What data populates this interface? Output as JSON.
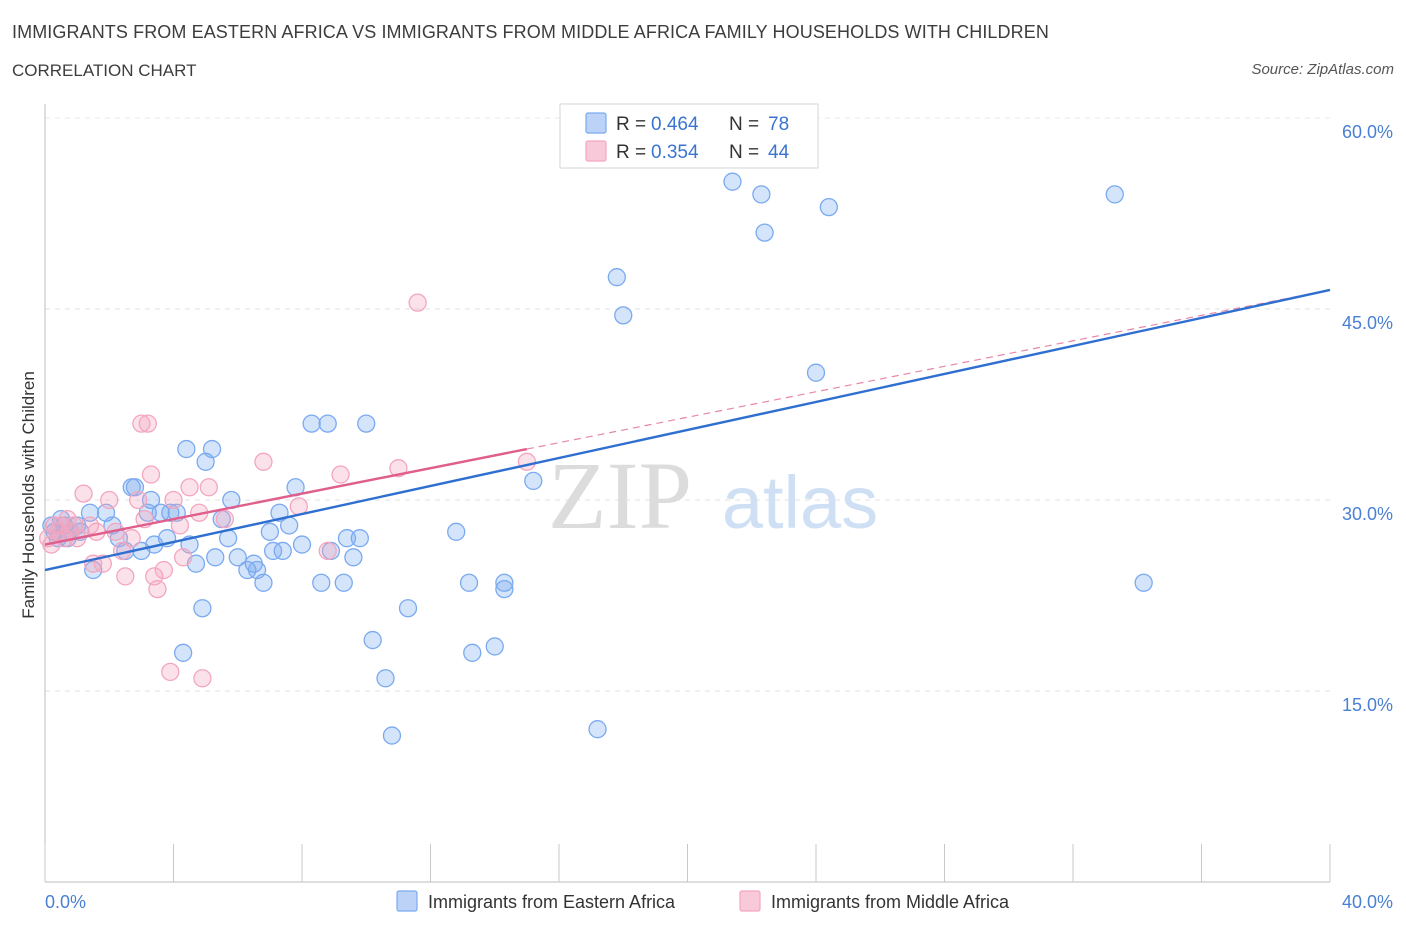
{
  "chart_data": {
    "type": "scatter",
    "title": "IMMIGRANTS FROM EASTERN AFRICA VS IMMIGRANTS FROM MIDDLE AFRICA FAMILY HOUSEHOLDS WITH CHILDREN",
    "subtitle": "CORRELATION CHART",
    "source": "Source: ZipAtlas.com",
    "ylabel": "Family Households with Children",
    "xlim": [
      0,
      40
    ],
    "ylim": [
      0,
      60
    ],
    "x_tick_labels": [
      "0.0%",
      "40.0%"
    ],
    "y_ticks": [
      15,
      30,
      45,
      60
    ],
    "y_tick_labels": [
      "15.0%",
      "30.0%",
      "45.0%",
      "60.0%"
    ],
    "watermark": "ZIPatlas",
    "legend": [
      {
        "r_label": "R =",
        "r_value": "0.464",
        "n_label": "N =",
        "n_value": "78"
      },
      {
        "r_label": "R =",
        "r_value": "0.354",
        "n_label": "N =",
        "n_value": "44"
      }
    ],
    "series": [
      {
        "name": "Immigrants from Eastern Africa",
        "color": "#7aaaf0",
        "line_color": "#2f6fd0",
        "trend": {
          "x": [
            0,
            40
          ],
          "y": [
            24.5,
            46.5
          ]
        },
        "points": [
          [
            0.2,
            28
          ],
          [
            0.3,
            27.5
          ],
          [
            0.4,
            27
          ],
          [
            0.5,
            28.5
          ],
          [
            0.6,
            28
          ],
          [
            0.7,
            27
          ],
          [
            0.8,
            27.5
          ],
          [
            1.0,
            28
          ],
          [
            1.1,
            27.5
          ],
          [
            1.4,
            29
          ],
          [
            1.5,
            24.5
          ],
          [
            1.9,
            29
          ],
          [
            2.1,
            28
          ],
          [
            2.3,
            27
          ],
          [
            2.5,
            26
          ],
          [
            2.7,
            31
          ],
          [
            2.8,
            31
          ],
          [
            3.0,
            26
          ],
          [
            3.2,
            29
          ],
          [
            3.3,
            30
          ],
          [
            3.4,
            26.5
          ],
          [
            3.6,
            29
          ],
          [
            3.8,
            27
          ],
          [
            3.9,
            29
          ],
          [
            4.1,
            29
          ],
          [
            4.3,
            18
          ],
          [
            4.4,
            34
          ],
          [
            4.5,
            26.5
          ],
          [
            4.7,
            25
          ],
          [
            4.9,
            21.5
          ],
          [
            5.0,
            33
          ],
          [
            5.2,
            34
          ],
          [
            5.3,
            25.5
          ],
          [
            5.5,
            28.5
          ],
          [
            5.7,
            27
          ],
          [
            5.8,
            30
          ],
          [
            6.0,
            25.5
          ],
          [
            6.3,
            24.5
          ],
          [
            6.5,
            25
          ],
          [
            6.6,
            24.5
          ],
          [
            6.8,
            23.5
          ],
          [
            7.0,
            27.5
          ],
          [
            7.1,
            26
          ],
          [
            7.3,
            29
          ],
          [
            7.4,
            26
          ],
          [
            7.6,
            28
          ],
          [
            7.8,
            31
          ],
          [
            8.0,
            26.5
          ],
          [
            8.3,
            36
          ],
          [
            8.6,
            23.5
          ],
          [
            8.8,
            36
          ],
          [
            8.9,
            26
          ],
          [
            9.3,
            23.5
          ],
          [
            9.4,
            27
          ],
          [
            9.6,
            25.5
          ],
          [
            9.8,
            27
          ],
          [
            10.0,
            36
          ],
          [
            10.2,
            19
          ],
          [
            10.6,
            16
          ],
          [
            10.8,
            11.5
          ],
          [
            11.3,
            21.5
          ],
          [
            12.8,
            27.5
          ],
          [
            13.2,
            23.5
          ],
          [
            13.3,
            18
          ],
          [
            14.0,
            18.5
          ],
          [
            14.3,
            23.5
          ],
          [
            14.3,
            23
          ],
          [
            15.2,
            31.5
          ],
          [
            17.2,
            12
          ],
          [
            17.8,
            47.5
          ],
          [
            18.0,
            44.5
          ],
          [
            21.4,
            55
          ],
          [
            22.3,
            54
          ],
          [
            22.4,
            51
          ],
          [
            24.0,
            40
          ],
          [
            24.4,
            53
          ],
          [
            33.3,
            54
          ],
          [
            34.2,
            23.5
          ]
        ]
      },
      {
        "name": "Immigrants from Middle Africa",
        "color": "#f4a6bf",
        "line_color": "#e05e8c",
        "trend": {
          "x": [
            0,
            15
          ],
          "y": [
            26.5,
            34
          ]
        },
        "trend_dashed": {
          "x": [
            15,
            40
          ],
          "y": [
            34,
            46.5
          ]
        },
        "points": [
          [
            0.1,
            27
          ],
          [
            0.2,
            26.5
          ],
          [
            0.3,
            28
          ],
          [
            0.4,
            27.5
          ],
          [
            0.5,
            28
          ],
          [
            0.6,
            27
          ],
          [
            0.7,
            28.5
          ],
          [
            0.8,
            27.5
          ],
          [
            0.9,
            28
          ],
          [
            1.0,
            27
          ],
          [
            1.2,
            30.5
          ],
          [
            1.4,
            28
          ],
          [
            1.5,
            25
          ],
          [
            1.6,
            27.5
          ],
          [
            1.8,
            25
          ],
          [
            2.0,
            30
          ],
          [
            2.2,
            27.5
          ],
          [
            2.4,
            26
          ],
          [
            2.5,
            24
          ],
          [
            2.7,
            27
          ],
          [
            2.9,
            30
          ],
          [
            3.0,
            36
          ],
          [
            3.1,
            28.5
          ],
          [
            3.2,
            36
          ],
          [
            3.3,
            32
          ],
          [
            3.4,
            24
          ],
          [
            3.5,
            23
          ],
          [
            3.7,
            24.5
          ],
          [
            3.9,
            16.5
          ],
          [
            4.0,
            30
          ],
          [
            4.2,
            28
          ],
          [
            4.3,
            25.5
          ],
          [
            4.5,
            31
          ],
          [
            4.8,
            29
          ],
          [
            4.9,
            16
          ],
          [
            5.1,
            31
          ],
          [
            5.6,
            28.5
          ],
          [
            6.8,
            33
          ],
          [
            7.9,
            29.5
          ],
          [
            8.8,
            26
          ],
          [
            9.2,
            32
          ],
          [
            11.0,
            32.5
          ],
          [
            11.6,
            45.5
          ],
          [
            15.0,
            33
          ]
        ]
      }
    ]
  }
}
